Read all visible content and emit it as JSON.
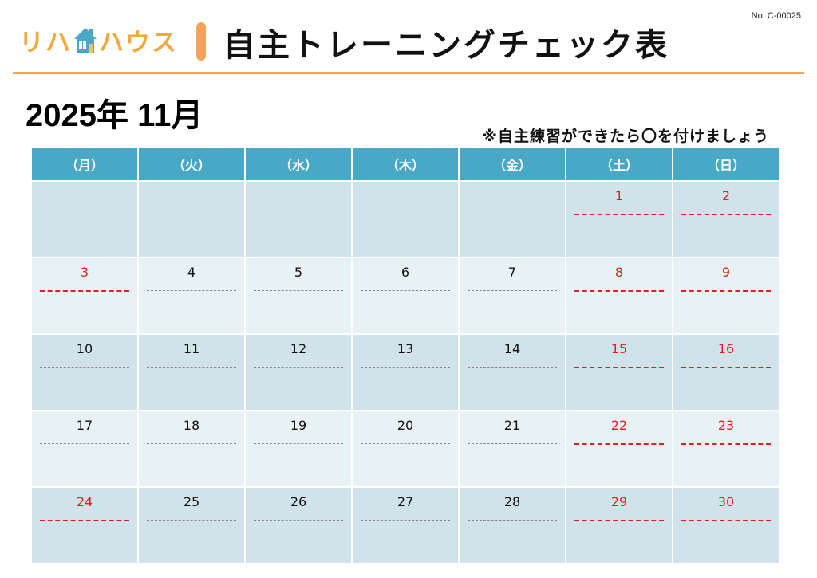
{
  "doc_number": "No. C-00025",
  "logo": {
    "text_before": "リハ",
    "text_after": "ハウス",
    "icon": "house-icon",
    "color": "#f2a93b"
  },
  "title": "自主トレーニングチェック表",
  "month": "2025年 11月",
  "note": "※自主練習ができたら〇を付けましょう",
  "colors": {
    "header_bg": "#4aa8c7",
    "row_dark": "#d0e3ea",
    "row_light": "#e8f1f4",
    "accent": "#f4a45a",
    "holiday": "#e02020"
  },
  "weekdays": [
    "（月）",
    "（火）",
    "（水）",
    "（木）",
    "（金）",
    "（土）",
    "（日）"
  ],
  "weeks": [
    [
      "",
      "",
      "",
      "",
      "",
      "1",
      "2"
    ],
    [
      "3",
      "4",
      "5",
      "6",
      "7",
      "8",
      "9"
    ],
    [
      "10",
      "11",
      "12",
      "13",
      "14",
      "15",
      "16"
    ],
    [
      "17",
      "18",
      "19",
      "20",
      "21",
      "22",
      "23"
    ],
    [
      "24",
      "25",
      "26",
      "27",
      "28",
      "29",
      "30"
    ]
  ],
  "holidays": [
    "1",
    "2",
    "3",
    "8",
    "9",
    "15",
    "16",
    "22",
    "23",
    "24",
    "29",
    "30"
  ]
}
